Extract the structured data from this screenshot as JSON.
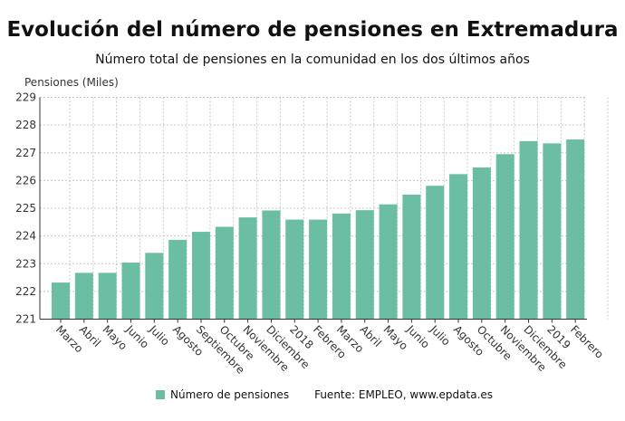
{
  "chart_data": {
    "type": "bar",
    "title": "Evolución del número de pensiones en Extremadura",
    "subtitle": "Número total de pensiones en la comunidad en los dos últimos años",
    "ylabel": "Pensiones (Miles)",
    "xlabel": "",
    "ylim": [
      221,
      229
    ],
    "yticks": [
      221,
      222,
      223,
      224,
      225,
      226,
      227,
      228,
      229
    ],
    "grid": true,
    "categories": [
      "Marzo",
      "Abril",
      "Mayo",
      "Junio",
      "Julio",
      "Agosto",
      "Septiembre",
      "Octubre",
      "Noviembre",
      "Diciembre",
      "2018",
      "Febrero",
      "Marzo",
      "Abril",
      "Mayo",
      "Junio",
      "Julio",
      "Agosto",
      "Octubre",
      "Noviembre",
      "Diciembre",
      "2019",
      "Febrero"
    ],
    "series": [
      {
        "name": "Número de pensiones",
        "color": "#6bbea3",
        "values": [
          222.32,
          222.67,
          222.67,
          223.04,
          223.39,
          223.86,
          224.15,
          224.33,
          224.67,
          224.92,
          224.59,
          224.59,
          224.81,
          224.93,
          225.14,
          225.49,
          225.81,
          226.23,
          226.47,
          226.95,
          227.42,
          227.34,
          227.48
        ]
      }
    ],
    "legend_position": "bottom",
    "source": "Fuente: EMPLEO, www.epdata.es"
  }
}
